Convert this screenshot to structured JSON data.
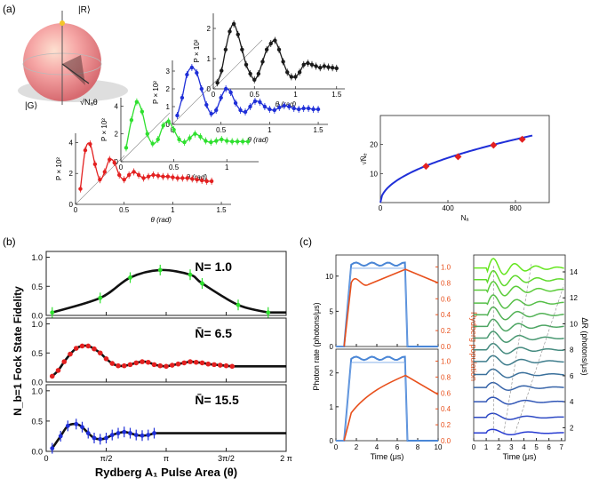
{
  "figure": {
    "panel_labels": [
      "(a)",
      "(b)",
      "(c)"
    ]
  },
  "colors": {
    "black": "#1a1a1a",
    "blue": "#1f2fd8",
    "green": "#2fe02f",
    "red": "#e32020",
    "sphere": "#f5a2a8",
    "orange": "#e8501c",
    "lightblue": "#4a86d6"
  },
  "chart_data": [
    {
      "id": "a-black",
      "type": "line+scatter",
      "series_color": "black",
      "xlabel": "θ (rad)",
      "ylabel": "P × 10²",
      "xlim": [
        0,
        1.6
      ],
      "ylim": [
        0,
        2.5
      ],
      "xticks": [
        0,
        0.5,
        1,
        1.5
      ],
      "xticklabels": [
        "0",
        "0.5",
        "1",
        "1.5"
      ],
      "yticks": [
        0,
        1,
        2
      ],
      "yticklabels": [
        "0",
        "1",
        "2"
      ],
      "points": [
        [
          0.05,
          0.2
        ],
        [
          0.1,
          0.6
        ],
        [
          0.15,
          1.3
        ],
        [
          0.2,
          1.9
        ],
        [
          0.25,
          2.15
        ],
        [
          0.3,
          1.8
        ],
        [
          0.35,
          1.3
        ],
        [
          0.4,
          0.8
        ],
        [
          0.45,
          0.5
        ],
        [
          0.5,
          0.3
        ],
        [
          0.55,
          0.5
        ],
        [
          0.6,
          0.9
        ],
        [
          0.65,
          1.3
        ],
        [
          0.7,
          1.5
        ],
        [
          0.75,
          1.6
        ],
        [
          0.8,
          1.3
        ],
        [
          0.85,
          0.9
        ],
        [
          0.9,
          0.55
        ],
        [
          0.95,
          0.4
        ],
        [
          1.0,
          0.4
        ],
        [
          1.05,
          0.55
        ],
        [
          1.1,
          0.8
        ],
        [
          1.15,
          0.85
        ],
        [
          1.2,
          0.8
        ],
        [
          1.25,
          0.75
        ],
        [
          1.3,
          0.7
        ],
        [
          1.35,
          0.75
        ],
        [
          1.4,
          0.72
        ],
        [
          1.45,
          0.7
        ],
        [
          1.5,
          0.68
        ]
      ]
    },
    {
      "id": "a-blue",
      "type": "line+scatter",
      "series_color": "blue",
      "xlabel": "θ (rad)",
      "ylabel": "P × 10²",
      "xlim": [
        0,
        1.6
      ],
      "ylim": [
        0,
        3.6
      ],
      "xticks": [
        0,
        0.5,
        1,
        1.5
      ],
      "xticklabels": [
        "0",
        "0.5",
        "1",
        "1.5"
      ],
      "yticks": [
        0,
        1,
        2,
        3
      ],
      "yticklabels": [
        "0",
        "1",
        "2",
        "3"
      ],
      "points": [
        [
          0.05,
          0.5
        ],
        [
          0.1,
          1.5
        ],
        [
          0.15,
          2.8
        ],
        [
          0.2,
          3.2
        ],
        [
          0.25,
          2.9
        ],
        [
          0.3,
          2.0
        ],
        [
          0.35,
          1.1
        ],
        [
          0.4,
          0.6
        ],
        [
          0.45,
          0.8
        ],
        [
          0.5,
          1.5
        ],
        [
          0.55,
          2.0
        ],
        [
          0.6,
          1.8
        ],
        [
          0.65,
          1.2
        ],
        [
          0.7,
          0.8
        ],
        [
          0.75,
          0.7
        ],
        [
          0.8,
          1.0
        ],
        [
          0.85,
          1.3
        ],
        [
          0.9,
          1.25
        ],
        [
          0.95,
          1.0
        ],
        [
          1.0,
          0.85
        ],
        [
          1.05,
          0.8
        ],
        [
          1.1,
          0.95
        ],
        [
          1.15,
          1.05
        ],
        [
          1.2,
          1.0
        ],
        [
          1.25,
          0.9
        ],
        [
          1.3,
          0.85
        ],
        [
          1.35,
          0.9
        ],
        [
          1.4,
          0.9
        ],
        [
          1.45,
          0.85
        ],
        [
          1.5,
          0.85
        ]
      ]
    },
    {
      "id": "a-green",
      "type": "line+scatter",
      "series_color": "green",
      "xlabel": "θ (rad)",
      "ylabel": "P × 10²",
      "xlim": [
        0,
        1.3
      ],
      "ylim": [
        0,
        4.6
      ],
      "xticks": [
        0,
        0.5,
        1
      ],
      "xticklabels": [
        "0",
        "0.5",
        "1"
      ],
      "yticks": [
        0,
        2,
        4
      ],
      "yticklabels": [
        "0",
        "2",
        "4"
      ],
      "points": [
        [
          0.05,
          1.0
        ],
        [
          0.1,
          3.0
        ],
        [
          0.15,
          4.3
        ],
        [
          0.2,
          3.6
        ],
        [
          0.25,
          2.0
        ],
        [
          0.3,
          1.3
        ],
        [
          0.35,
          1.6
        ],
        [
          0.4,
          2.6
        ],
        [
          0.45,
          2.9
        ],
        [
          0.5,
          2.3
        ],
        [
          0.55,
          1.6
        ],
        [
          0.6,
          1.4
        ],
        [
          0.65,
          1.7
        ],
        [
          0.7,
          2.0
        ],
        [
          0.75,
          1.8
        ],
        [
          0.8,
          1.5
        ],
        [
          0.85,
          1.4
        ],
        [
          0.9,
          1.5
        ],
        [
          0.95,
          1.6
        ],
        [
          1.0,
          1.5
        ],
        [
          1.05,
          1.45
        ],
        [
          1.1,
          1.45
        ],
        [
          1.15,
          1.45
        ],
        [
          1.2,
          1.45
        ]
      ]
    },
    {
      "id": "a-red",
      "type": "line+scatter",
      "series_color": "red",
      "xlabel": "θ (rad)",
      "ylabel": "P × 10²",
      "xlim": [
        0,
        1.6
      ],
      "ylim": [
        0,
        4.6
      ],
      "xticks": [
        0,
        0.5,
        1,
        1.5
      ],
      "xticklabels": [
        "0",
        "0.5",
        "1",
        "1.5"
      ],
      "yticks": [
        0,
        2,
        4
      ],
      "yticklabels": [
        "0",
        "2",
        "4"
      ],
      "points": [
        [
          0.05,
          1.0
        ],
        [
          0.1,
          3.5
        ],
        [
          0.15,
          3.9
        ],
        [
          0.2,
          2.6
        ],
        [
          0.25,
          1.6
        ],
        [
          0.3,
          2.1
        ],
        [
          0.35,
          2.9
        ],
        [
          0.4,
          2.7
        ],
        [
          0.45,
          1.9
        ],
        [
          0.5,
          1.6
        ],
        [
          0.55,
          1.9
        ],
        [
          0.6,
          2.1
        ],
        [
          0.65,
          1.9
        ],
        [
          0.7,
          1.7
        ],
        [
          0.75,
          1.8
        ],
        [
          0.8,
          1.9
        ],
        [
          0.85,
          1.85
        ],
        [
          0.9,
          1.8
        ],
        [
          0.95,
          1.8
        ],
        [
          1.0,
          1.75
        ],
        [
          1.05,
          1.7
        ],
        [
          1.1,
          1.7
        ],
        [
          1.15,
          1.7
        ],
        [
          1.2,
          1.65
        ],
        [
          1.25,
          1.6
        ],
        [
          1.3,
          1.55
        ],
        [
          1.35,
          1.5
        ],
        [
          1.4,
          1.5
        ]
      ]
    },
    {
      "id": "a-sqrtN",
      "type": "line+scatter",
      "xlabel": "Nₐ",
      "ylabel": "√N̄ₑ",
      "xlim": [
        0,
        1000
      ],
      "ylim": [
        0,
        30
      ],
      "xticks": [
        0,
        400,
        800
      ],
      "xticklabels": [
        "0",
        "400",
        "800"
      ],
      "yticks": [
        10,
        20
      ],
      "yticklabels": [
        "10",
        "20"
      ],
      "curve_fn": "0.77*sqrt(x)",
      "points": [
        [
          270,
          12.5
        ],
        [
          460,
          15.8
        ],
        [
          670,
          19.8
        ],
        [
          840,
          21.8
        ]
      ]
    },
    {
      "id": "b1",
      "type": "line+scatter",
      "label": "N= 1.0",
      "series_color": "green",
      "ylim": [
        0,
        1.1
      ],
      "yticks": [
        0,
        0.5,
        1.0
      ],
      "yticklabels": [
        "0.0",
        "0.5",
        "1.0"
      ],
      "xlim": [
        0,
        2
      ],
      "xunits": "π",
      "points": [
        [
          0.05,
          0.05
        ],
        [
          0.45,
          0.3
        ],
        [
          0.7,
          0.65
        ],
        [
          0.95,
          0.78
        ],
        [
          1.2,
          0.7
        ],
        [
          1.3,
          0.55
        ],
        [
          1.6,
          0.18
        ],
        [
          1.85,
          0.05
        ]
      ]
    },
    {
      "id": "b2",
      "type": "line+scatter",
      "label": "N̄= 6.5",
      "series_color": "red",
      "ylim": [
        0,
        1.1
      ],
      "yticks": [
        0,
        0.5,
        1.0
      ],
      "yticklabels": [
        "0.0",
        "0.5",
        "1.0"
      ],
      "xlim": [
        0,
        2
      ],
      "xunits": "π",
      "points": [
        [
          0.05,
          0.1
        ],
        [
          0.1,
          0.2
        ],
        [
          0.15,
          0.35
        ],
        [
          0.2,
          0.48
        ],
        [
          0.25,
          0.58
        ],
        [
          0.3,
          0.62
        ],
        [
          0.35,
          0.62
        ],
        [
          0.4,
          0.57
        ],
        [
          0.45,
          0.5
        ],
        [
          0.5,
          0.4
        ],
        [
          0.55,
          0.32
        ],
        [
          0.6,
          0.28
        ],
        [
          0.65,
          0.28
        ],
        [
          0.7,
          0.3
        ],
        [
          0.75,
          0.33
        ],
        [
          0.8,
          0.35
        ],
        [
          0.85,
          0.34
        ],
        [
          0.9,
          0.3
        ],
        [
          0.95,
          0.28
        ],
        [
          1.0,
          0.27
        ],
        [
          1.05,
          0.29
        ],
        [
          1.1,
          0.31
        ],
        [
          1.15,
          0.33
        ],
        [
          1.2,
          0.35
        ],
        [
          1.25,
          0.34
        ],
        [
          1.3,
          0.33
        ],
        [
          1.35,
          0.31
        ],
        [
          1.4,
          0.3
        ],
        [
          1.45,
          0.29
        ],
        [
          1.5,
          0.28
        ],
        [
          1.55,
          0.27
        ]
      ]
    },
    {
      "id": "b3",
      "type": "line+scatter",
      "label": "N̄= 15.5",
      "series_color": "blue",
      "ylim": [
        0,
        1.1
      ],
      "yticks": [
        0,
        0.5,
        1.0
      ],
      "yticklabels": [
        "0.0",
        "0.5",
        "1.0"
      ],
      "xlim": [
        0,
        2
      ],
      "xunits": "π",
      "xticklabels": [
        "0",
        "π/2",
        "π",
        "3π/2",
        "2 π"
      ],
      "xlabel": "Rydberg A₁ Pulse Area (θ)",
      "ylabel_shared": "N_b=1 Fock State Fidelity",
      "points": [
        [
          0.05,
          0.05
        ],
        [
          0.12,
          0.25
        ],
        [
          0.18,
          0.42
        ],
        [
          0.25,
          0.45
        ],
        [
          0.3,
          0.4
        ],
        [
          0.35,
          0.3
        ],
        [
          0.4,
          0.22
        ],
        [
          0.45,
          0.2
        ],
        [
          0.5,
          0.22
        ],
        [
          0.55,
          0.27
        ],
        [
          0.6,
          0.3
        ],
        [
          0.65,
          0.32
        ],
        [
          0.7,
          0.3
        ],
        [
          0.75,
          0.27
        ],
        [
          0.8,
          0.26
        ],
        [
          0.85,
          0.27
        ],
        [
          0.9,
          0.3
        ]
      ]
    },
    {
      "id": "c-left",
      "type": "line",
      "xlabel": "Time (μs)",
      "xlim": [
        0,
        10
      ],
      "xticks": [
        0,
        2,
        4,
        6,
        8,
        10
      ],
      "xticklabels": [
        "0",
        "2",
        "4",
        "6",
        "8",
        "10"
      ],
      "ylabel_left": "Photon rate (photons/μs)",
      "ylabel_right": "Rydberg population",
      "top": {
        "yticks_left": [
          "0",
          "5",
          "10"
        ],
        "yticks_right": [
          "0.0",
          "0.2",
          "0.4",
          "0.6",
          "0.8",
          "1.0"
        ],
        "ylim_left": [
          0,
          13
        ]
      },
      "bottom": {
        "yticks_left": [
          "0",
          "1",
          "2"
        ],
        "yticks_right": [
          "0.0",
          "0.2",
          "0.4",
          "0.6",
          "0.8",
          "1.0"
        ],
        "ylim_left": [
          0,
          2.7
        ]
      }
    },
    {
      "id": "c-right",
      "type": "line",
      "xlabel": "Time (μs)",
      "xlim": [
        0,
        7.3
      ],
      "xticks": [
        0,
        1,
        2,
        3,
        4,
        5,
        6,
        7
      ],
      "xticklabels": [
        "0",
        "1",
        "2",
        "3",
        "4",
        "5",
        "6",
        "7"
      ],
      "ylabel_right": "ΔR (photons/μs)",
      "yticks_right": [
        2,
        4,
        6,
        8,
        10,
        12,
        14
      ],
      "yticklabels_right": [
        "2",
        "4",
        "6",
        "8",
        "10",
        "12",
        "14"
      ],
      "ylim": [
        1,
        15.3
      ],
      "offsets": [
        1.6,
        2.8,
        4.0,
        5.1,
        6.1,
        7.1,
        8.0,
        8.9,
        9.8,
        10.7,
        11.6,
        12.6,
        13.4,
        14.3
      ]
    }
  ]
}
